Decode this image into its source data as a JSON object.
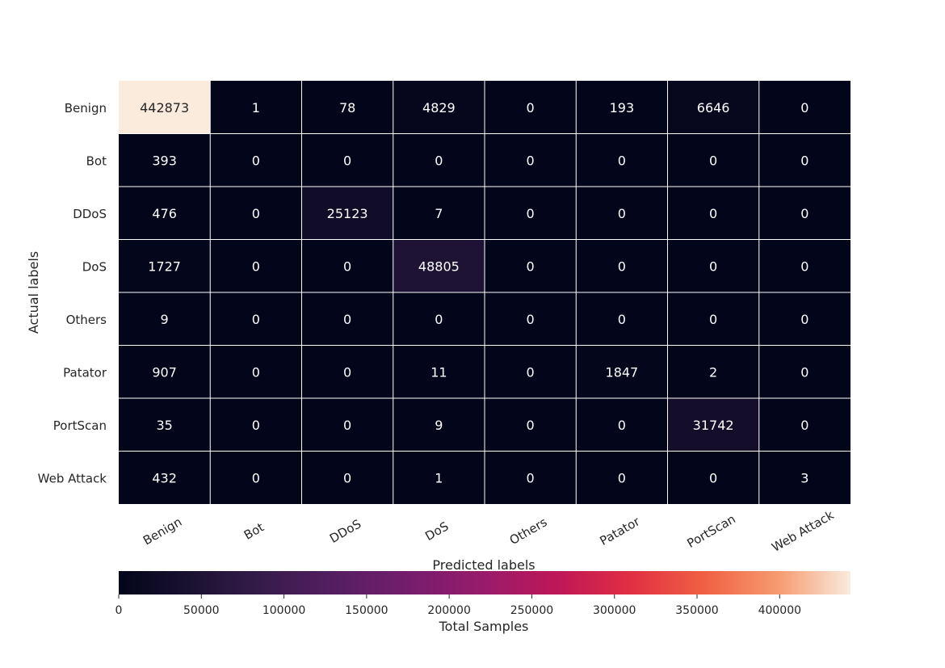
{
  "chart_data": {
    "type": "heatmap",
    "title": "",
    "xlabel": "Predicted labels",
    "ylabel": "Actual labels",
    "x_categories": [
      "Benign",
      "Bot",
      "DDoS",
      "DoS",
      "Others",
      "Patator",
      "PortScan",
      "Web Attack"
    ],
    "y_categories": [
      "Benign",
      "Bot",
      "DDoS",
      "DoS",
      "Others",
      "Patator",
      "PortScan",
      "Web Attack"
    ],
    "values": [
      [
        442873,
        1,
        78,
        4829,
        0,
        193,
        6646,
        0
      ],
      [
        393,
        0,
        0,
        0,
        0,
        0,
        0,
        0
      ],
      [
        476,
        0,
        25123,
        7,
        0,
        0,
        0,
        0
      ],
      [
        1727,
        0,
        0,
        48805,
        0,
        0,
        0,
        0
      ],
      [
        9,
        0,
        0,
        0,
        0,
        0,
        0,
        0
      ],
      [
        907,
        0,
        0,
        11,
        0,
        1847,
        2,
        0
      ],
      [
        35,
        0,
        0,
        9,
        0,
        0,
        31742,
        0
      ],
      [
        432,
        0,
        0,
        1,
        0,
        0,
        0,
        3
      ]
    ],
    "colormap": "rocket",
    "colorbar": {
      "label": "Total Samples",
      "range": [
        0,
        442873
      ],
      "ticks": [
        0,
        50000,
        100000,
        150000,
        200000,
        250000,
        300000,
        350000,
        400000
      ],
      "orientation": "horizontal"
    },
    "grid": true,
    "cell_border_color": "#ffffff"
  }
}
